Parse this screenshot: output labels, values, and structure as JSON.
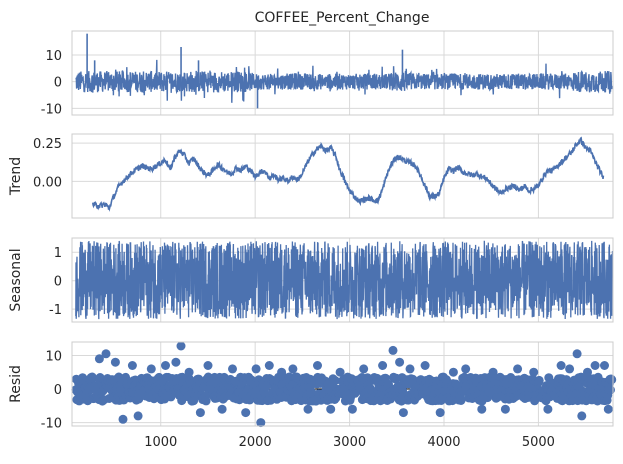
{
  "chart_data": [
    {
      "type": "line",
      "title": "COFFEE_Percent_Change",
      "ylabel": "",
      "x_range": [
        60,
        5790
      ],
      "ylim": [
        -12.5,
        19
      ],
      "yticks": [
        -10,
        0,
        10
      ],
      "xticks": [
        1000,
        2000,
        3000,
        4000,
        5000
      ],
      "show_xtick_labels": false,
      "grid": true,
      "series": [
        {
          "color": "#4c72b0",
          "x": [
            100,
            200,
            220,
            300,
            400,
            500,
            600,
            700,
            800,
            900,
            1000,
            1100,
            1200,
            1215,
            1300,
            1400,
            1500,
            1600,
            1700,
            1800,
            1900,
            2000,
            2025,
            2100,
            2200,
            2300,
            2400,
            2500,
            2600,
            2700,
            2800,
            2900,
            3000,
            3100,
            3200,
            3300,
            3400,
            3500,
            3560,
            3600,
            3700,
            3800,
            3900,
            4000,
            4100,
            4200,
            4300,
            4400,
            4500,
            4600,
            4700,
            4800,
            4900,
            5000,
            5100,
            5200,
            5300,
            5400,
            5500,
            5600,
            5700,
            5780
          ],
          "y": [
            0.5,
            2,
            18,
            8,
            6,
            5,
            5,
            7,
            4,
            5,
            7,
            6,
            7,
            13,
            6,
            8,
            6,
            5,
            4,
            5,
            6,
            6,
            -10,
            4,
            4,
            5,
            6,
            5,
            6,
            5,
            4,
            5,
            6,
            5,
            4,
            6,
            5,
            6,
            12,
            6,
            5,
            5,
            4,
            5,
            4,
            5,
            5,
            4,
            5,
            6,
            5,
            5,
            4,
            5,
            5,
            5,
            5,
            6,
            6,
            5,
            5,
            4
          ],
          "band": [
            4,
            4,
            4,
            4,
            4,
            4,
            4,
            4,
            4,
            4,
            4,
            4,
            4,
            4,
            4,
            4,
            4,
            4,
            4,
            4,
            4,
            3,
            3,
            3,
            3,
            3,
            3,
            3,
            3,
            3,
            3,
            3,
            3,
            3,
            3,
            3,
            3,
            4,
            4,
            4,
            3,
            3,
            3,
            3,
            3,
            3,
            3,
            3,
            3,
            3,
            3,
            3,
            3,
            3,
            3,
            3,
            3,
            4,
            4,
            4,
            4,
            4
          ]
        }
      ]
    },
    {
      "type": "line",
      "title": "",
      "ylabel": "Trend",
      "x_range": [
        60,
        5790
      ],
      "ylim": [
        -0.24,
        0.31
      ],
      "yticks": [
        0.0,
        0.25
      ],
      "ytick_labels": [
        "0.00",
        "0.25"
      ],
      "xticks": [
        1000,
        2000,
        3000,
        4000,
        5000
      ],
      "show_xtick_labels": false,
      "grid": true,
      "series": [
        {
          "color": "#4c72b0",
          "x": [
            280,
            350,
            420,
            450,
            500,
            560,
            600,
            700,
            800,
            900,
            1000,
            1050,
            1100,
            1150,
            1200,
            1250,
            1300,
            1350,
            1400,
            1450,
            1500,
            1550,
            1600,
            1650,
            1700,
            1750,
            1800,
            1850,
            1900,
            1950,
            2000,
            2050,
            2100,
            2150,
            2200,
            2250,
            2300,
            2350,
            2400,
            2450,
            2500,
            2550,
            2600,
            2650,
            2700,
            2750,
            2800,
            2850,
            2900,
            2950,
            3000,
            3050,
            3100,
            3150,
            3200,
            3250,
            3300,
            3350,
            3400,
            3450,
            3500,
            3550,
            3600,
            3650,
            3700,
            3750,
            3800,
            3850,
            3900,
            3950,
            4000,
            4050,
            4100,
            4150,
            4200,
            4250,
            4300,
            4350,
            4400,
            4450,
            4500,
            4550,
            4600,
            4650,
            4700,
            4750,
            4800,
            4850,
            4900,
            4950,
            5000,
            5050,
            5100,
            5150,
            5200,
            5250,
            5300,
            5350,
            5400,
            5450,
            5500,
            5550,
            5600,
            5650,
            5690
          ],
          "y": [
            -0.15,
            -0.16,
            -0.15,
            -0.18,
            -0.1,
            -0.03,
            0.0,
            0.06,
            0.1,
            0.08,
            0.12,
            0.14,
            0.08,
            0.16,
            0.2,
            0.17,
            0.12,
            0.15,
            0.1,
            0.06,
            0.04,
            0.07,
            0.11,
            0.09,
            0.06,
            0.05,
            0.09,
            0.07,
            0.1,
            0.07,
            0.03,
            0.06,
            0.07,
            0.02,
            0.04,
            0.01,
            0.02,
            0.0,
            0.03,
            0.01,
            0.05,
            0.12,
            0.17,
            0.21,
            0.23,
            0.2,
            0.22,
            0.17,
            0.07,
            0.0,
            -0.06,
            -0.1,
            -0.13,
            -0.12,
            -0.11,
            -0.12,
            -0.13,
            -0.05,
            0.05,
            0.12,
            0.16,
            0.15,
            0.13,
            0.12,
            0.1,
            0.04,
            -0.03,
            -0.1,
            -0.1,
            -0.08,
            0.02,
            0.08,
            0.07,
            0.09,
            0.06,
            0.05,
            0.04,
            0.05,
            0.03,
            0.02,
            -0.02,
            -0.05,
            -0.08,
            -0.05,
            -0.04,
            -0.03,
            -0.06,
            -0.03,
            -0.06,
            -0.05,
            -0.03,
            0.03,
            0.07,
            0.07,
            0.1,
            0.13,
            0.16,
            0.19,
            0.24,
            0.27,
            0.22,
            0.2,
            0.13,
            0.07,
            0.02
          ]
        }
      ]
    },
    {
      "type": "line",
      "title": "",
      "ylabel": "Seasonal",
      "x_range": [
        60,
        5790
      ],
      "ylim": [
        -1.45,
        1.5
      ],
      "yticks": [
        -1,
        0,
        1
      ],
      "xticks": [
        1000,
        2000,
        3000,
        4000,
        5000
      ],
      "show_xtick_labels": false,
      "grid": true,
      "series": [
        {
          "color": "#4c72b0",
          "amplitude_min": -1.35,
          "amplitude_max": 1.4
        }
      ]
    },
    {
      "type": "scatter",
      "title": "",
      "ylabel": "Resid",
      "x_range": [
        60,
        5790
      ],
      "ylim": [
        -11,
        14
      ],
      "yticks": [
        -10,
        0,
        10
      ],
      "xticks": [
        1000,
        2000,
        3000,
        4000,
        5000
      ],
      "xtick_labels": [
        "1000",
        "2000",
        "3000",
        "4000",
        "5000"
      ],
      "show_xtick_labels": true,
      "grid": true,
      "zero_line": true,
      "series": [
        {
          "color": "#4c72b0",
          "outliers_x": [
            350,
            420,
            520,
            600,
            700,
            760,
            900,
            1050,
            1160,
            1215,
            1300,
            1420,
            1500,
            1650,
            1760,
            1900,
            2010,
            2060,
            2150,
            2280,
            2400,
            2560,
            2660,
            2800,
            2900,
            3030,
            3150,
            3350,
            3460,
            3530,
            3570,
            3640,
            3800,
            3960,
            4100,
            4230,
            4400,
            4520,
            4650,
            4780,
            4950,
            5100,
            5240,
            5330,
            5410,
            5460,
            5520,
            5600,
            5700,
            5740
          ],
          "outliers_y": [
            9,
            10.5,
            8,
            -9,
            7,
            -8,
            6,
            7,
            8,
            12.8,
            5,
            -7,
            7,
            -6,
            6,
            -7,
            6,
            -10,
            7,
            5,
            6,
            -6,
            7,
            -6,
            5,
            -6,
            6,
            7,
            11.5,
            8,
            -7,
            6,
            7,
            -7,
            5,
            6,
            -6,
            5,
            -6,
            6,
            5,
            -6,
            7,
            6,
            10.5,
            -8,
            5,
            7,
            7,
            -6
          ]
        }
      ]
    }
  ]
}
